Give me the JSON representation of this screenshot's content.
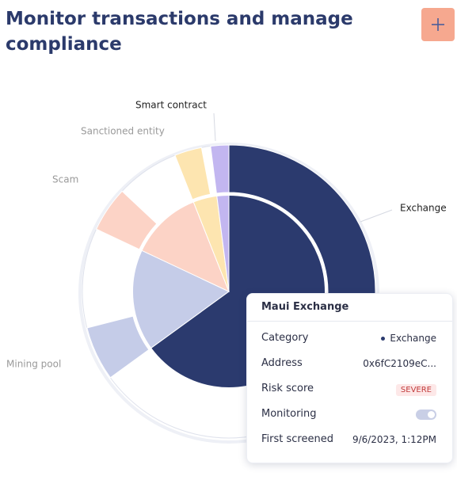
{
  "header": {
    "title": "Monitor transactions and manage compliance"
  },
  "chart_data": {
    "type": "sunburst",
    "categories": [
      "Exchange",
      "Mining pool",
      "Scam",
      "Sanctioned entity",
      "Smart contract"
    ],
    "values": [
      65,
      17,
      12,
      4,
      2
    ],
    "flagged_values": [
      27,
      6,
      5,
      3,
      2
    ],
    "colors": [
      "#2b3a6e",
      "#c5cce8",
      "#fcd3c6",
      "#fde5b0",
      "#c2b6f0"
    ]
  },
  "card": {
    "title": "Maui Exchange",
    "rows": [
      {
        "label": "Category",
        "value": "Exchange"
      },
      {
        "label": "Address",
        "value": "0x6fC2109eC..."
      },
      {
        "label": "Risk score",
        "value": "SEVERE"
      },
      {
        "label": "Monitoring"
      },
      {
        "label": "First screened",
        "value": "9/6/2023, 1:12PM"
      }
    ]
  }
}
